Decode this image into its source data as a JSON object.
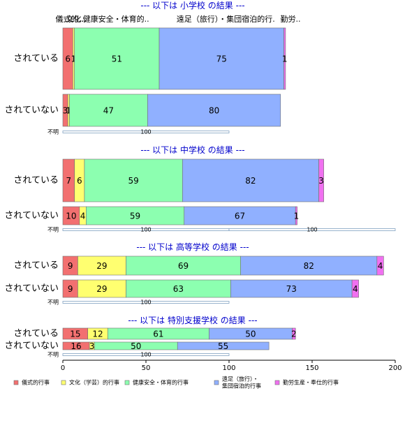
{
  "chart_data": {
    "type": "bar",
    "orientation": "horizontal",
    "stacked": true,
    "xlim": [
      0,
      200
    ],
    "x_ticks": [
      0,
      50,
      100,
      150,
      200
    ],
    "grid": false,
    "legend_position": "bottom",
    "series": [
      {
        "name": "儀式的行事",
        "color": "#f27070"
      },
      {
        "name": "文化（学芸）的行事",
        "color": "#ffff70"
      },
      {
        "name": "健康安全・体育的行事",
        "color": "#8cffb0"
      },
      {
        "name": "遠足（旅行）・集団宿泊的行事",
        "color": "#90b0ff"
      },
      {
        "name": "勤労生産・奉仕的行事",
        "color": "#f070f0"
      }
    ],
    "legend_lines": [
      [
        "儀式的行事"
      ],
      [
        "文化（学芸）的行事"
      ],
      [
        "健康安全・体育的行事"
      ],
      [
        "遠足（旅行）・",
        "集団宿泊的行事"
      ],
      [
        "勤労生産・奉仕的行事"
      ]
    ],
    "unknown_label": "不明",
    "panels": [
      {
        "title": "--- 以下は 小学校 の結果 ---",
        "top_labels": [
          {
            "text": "儀式的..",
            "x": 4
          },
          {
            "text": "文化..",
            "x": 8
          },
          {
            "text": "健康安全・体育的..",
            "x": 32
          },
          {
            "text": "遠足（旅行）・集団宿泊的行.",
            "x": 98
          },
          {
            "text": "勤労..",
            "x": 137
          }
        ],
        "rows": [
          {
            "label": "されている",
            "values": [
              6,
              1,
              51,
              75,
              1
            ],
            "value_labels": [
              "6",
              "1",
              "51",
              "75",
              "1"
            ]
          },
          {
            "label": "されていない",
            "values": [
              3,
              1,
              47,
              80,
              0
            ],
            "value_labels": [
              "3",
              "1",
              "47",
              "80",
              ""
            ]
          }
        ],
        "unknown": {
          "values": [
            100,
            0
          ],
          "labels": [
            "100",
            ""
          ]
        }
      },
      {
        "title": "--- 以下は 中学校 の結果 ---",
        "top_labels": [],
        "rows": [
          {
            "label": "されている",
            "values": [
              7,
              6,
              59,
              82,
              3
            ],
            "value_labels": [
              "7",
              "6",
              "59",
              "82",
              "3"
            ]
          },
          {
            "label": "されていない",
            "values": [
              10,
              4,
              59,
              67,
              1
            ],
            "value_labels": [
              "10",
              "4",
              "59",
              "67",
              "1"
            ]
          }
        ],
        "unknown": {
          "values": [
            100,
            100
          ],
          "labels": [
            "100",
            "100"
          ]
        }
      },
      {
        "title": "--- 以下は 高等学校 の結果 ---",
        "top_labels": [],
        "rows": [
          {
            "label": "されている",
            "values": [
              9,
              29,
              69,
              82,
              4
            ],
            "value_labels": [
              "9",
              "29",
              "69",
              "82",
              "4"
            ]
          },
          {
            "label": "されていない",
            "values": [
              9,
              29,
              63,
              73,
              4
            ],
            "value_labels": [
              "9",
              "29",
              "63",
              "73",
              "4"
            ]
          }
        ],
        "unknown": {
          "values": [
            100,
            0
          ],
          "labels": [
            "100",
            ""
          ]
        }
      },
      {
        "title": "--- 以下は 特別支援学校 の結果 ---",
        "top_labels": [],
        "rows": [
          {
            "label": "されている",
            "values": [
              15,
              12,
              61,
              50,
              2
            ],
            "value_labels": [
              "15",
              "12",
              "61",
              "50",
              "2"
            ]
          },
          {
            "label": "されていない",
            "values": [
              16,
              3,
              50,
              55,
              0
            ],
            "value_labels": [
              "16",
              "3",
              "50",
              "55",
              ""
            ]
          }
        ],
        "unknown": {
          "values": [
            100,
            0
          ],
          "labels": [
            "100",
            ""
          ]
        }
      }
    ]
  }
}
